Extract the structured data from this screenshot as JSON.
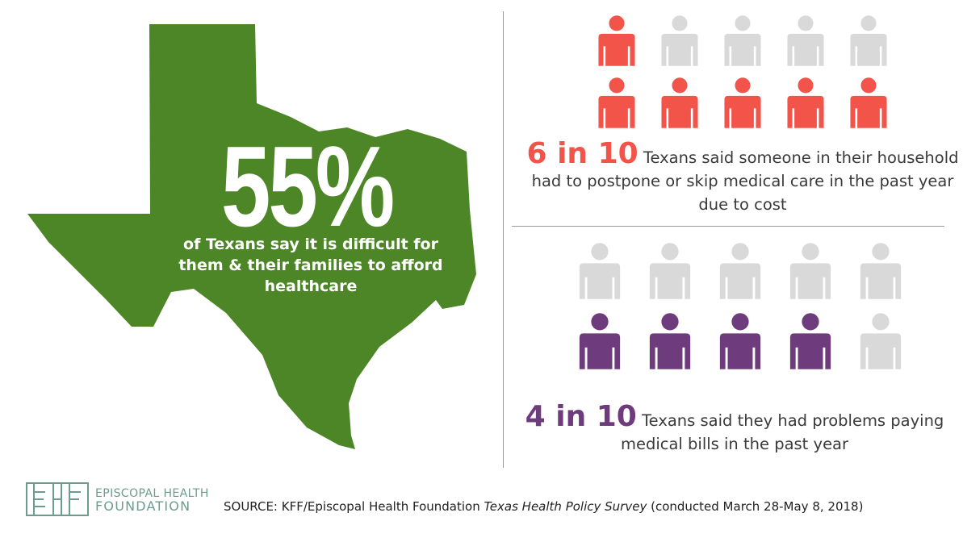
{
  "map": {
    "big_stat": "55%",
    "caption": "of Texans say it is difficult for them & their families to afford healthcare",
    "fill_color": "#4d8626"
  },
  "stat1": {
    "highlight": "6 in 10",
    "text": "Texans said someone in their household had to postpone or skip medical care in the past year due to cost",
    "color": "#f25449",
    "total": 10,
    "highlighted": 6
  },
  "stat2": {
    "highlight": "4 in 10",
    "text": "Texans said they had problems paying medical bills in the past year",
    "color": "#6e3c7c",
    "total": 10,
    "highlighted": 4
  },
  "inactive_color": "#d9d9d9",
  "logo": {
    "line1": "EPISCOPAL HEALTH",
    "line2": "FOUNDATION",
    "color": "#6b9c8e"
  },
  "source": {
    "prefix": "SOURCE: KFF/Episcopal Health Foundation ",
    "title": "Texas Health Policy Survey",
    "suffix": " (conducted March 28-May 8, 2018)"
  }
}
